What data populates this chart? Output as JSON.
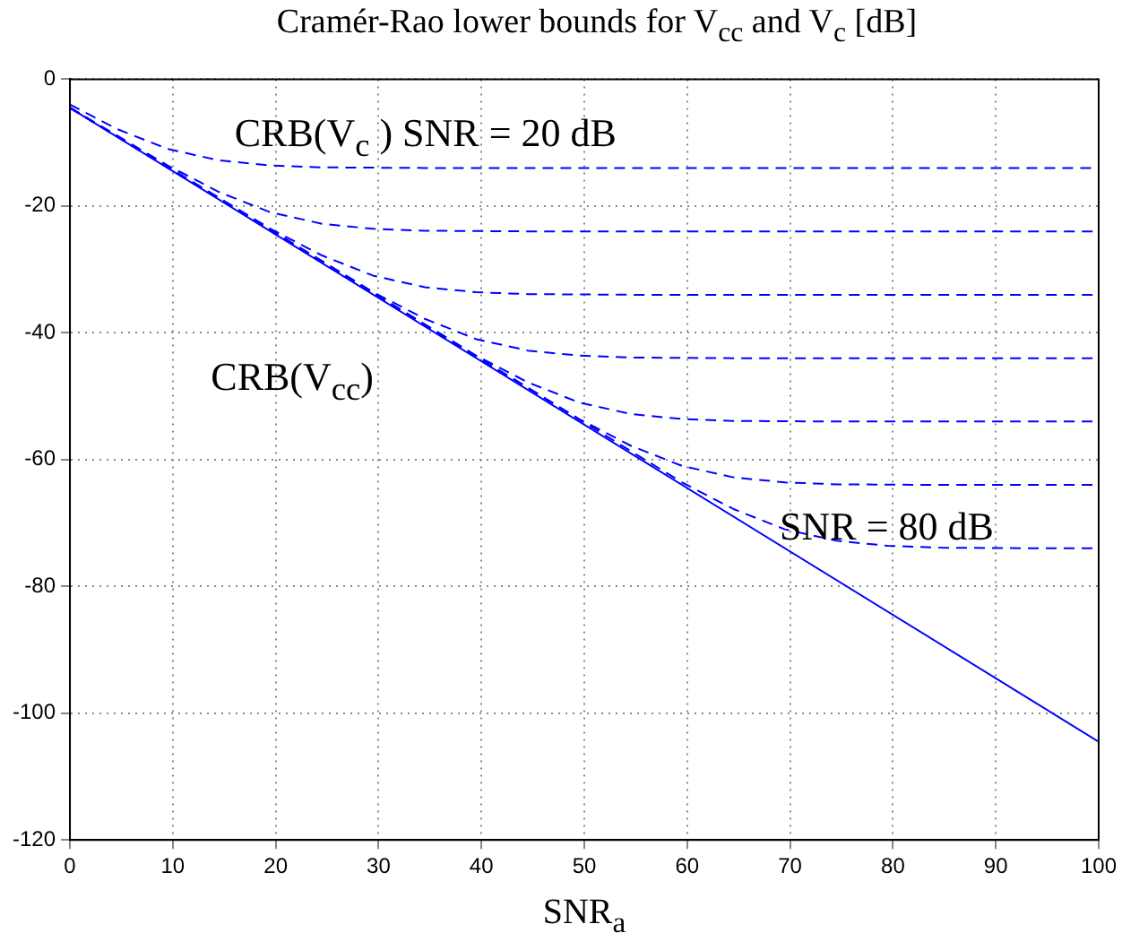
{
  "chart_data": {
    "type": "line",
    "title": "Cramér-Rao lower bounds for V$_{cc}$ and V$_{c}$ [dB]",
    "xlabel": "SNR$_{a}$",
    "xlim": [
      0,
      100
    ],
    "xticks": [
      0,
      10,
      20,
      30,
      40,
      50,
      60,
      70,
      80,
      90,
      100
    ],
    "ylim": [
      -120,
      0
    ],
    "yticks": [
      -120,
      -100,
      -80,
      -60,
      -40,
      -20,
      0
    ],
    "grid": true,
    "marker": "none",
    "series": [
      {
        "color": "#0000ff",
        "line_style": "solid",
        "x": [
          0,
          100
        ],
        "values": [
          -4.5,
          -104.5
        ]
      },
      {
        "color": "#0000ff",
        "line_style": "dashed",
        "x": [
          0,
          4.5,
          9.5,
          14.5,
          19.5,
          24.5,
          34.5,
          100
        ],
        "values": [
          -4.0,
          -7.8,
          -11.0,
          -12.8,
          -13.6,
          -13.9,
          -14,
          -14
        ]
      },
      {
        "color": "#0000ff",
        "line_style": "dashed",
        "x": [
          0,
          9.5,
          14.5,
          19.5,
          24.5,
          29.5,
          34.5,
          44.5,
          100
        ],
        "values": [
          -4.5,
          -13.6,
          -17.8,
          -21.0,
          -22.8,
          -23.6,
          -23.9,
          -24,
          -24
        ]
      },
      {
        "color": "#0000ff",
        "line_style": "dashed",
        "x": [
          0,
          19.5,
          24.5,
          29.5,
          34.5,
          39.5,
          44.5,
          54.5,
          100
        ],
        "values": [
          -4.5,
          -23.6,
          -27.8,
          -31.0,
          -32.8,
          -33.6,
          -33.9,
          -34,
          -34
        ]
      },
      {
        "color": "#0000ff",
        "line_style": "dashed",
        "x": [
          0,
          29.5,
          34.5,
          39.5,
          44.5,
          49.5,
          54.5,
          64.5,
          100
        ],
        "values": [
          -4.5,
          -33.6,
          -37.8,
          -41.0,
          -42.8,
          -43.6,
          -43.9,
          -44,
          -44
        ]
      },
      {
        "color": "#0000ff",
        "line_style": "dashed",
        "x": [
          0,
          39.5,
          44.5,
          49.5,
          54.5,
          59.5,
          64.5,
          74.5,
          100
        ],
        "values": [
          -4.5,
          -43.6,
          -47.8,
          -51.0,
          -52.8,
          -53.6,
          -53.9,
          -54,
          -54
        ]
      },
      {
        "color": "#0000ff",
        "line_style": "dashed",
        "x": [
          0,
          49.5,
          54.5,
          59.5,
          64.5,
          69.5,
          74.5,
          84.5,
          100
        ],
        "values": [
          -4.5,
          -53.6,
          -57.8,
          -61.0,
          -62.8,
          -63.6,
          -63.9,
          -64,
          -64
        ]
      },
      {
        "color": "#0000ff",
        "line_style": "dashed",
        "x": [
          0,
          59.5,
          64.5,
          69.5,
          74.5,
          79.5,
          84.5,
          94.5,
          100
        ],
        "values": [
          -4.5,
          -63.6,
          -67.8,
          -71.0,
          -72.8,
          -73.6,
          -73.9,
          -74,
          -74
        ]
      }
    ],
    "annotations": [
      "CRB(V$_{c}$ ) SNR = 20 dB",
      "CRB(V$_{cc}$)",
      "SNR = 80 dB"
    ]
  }
}
